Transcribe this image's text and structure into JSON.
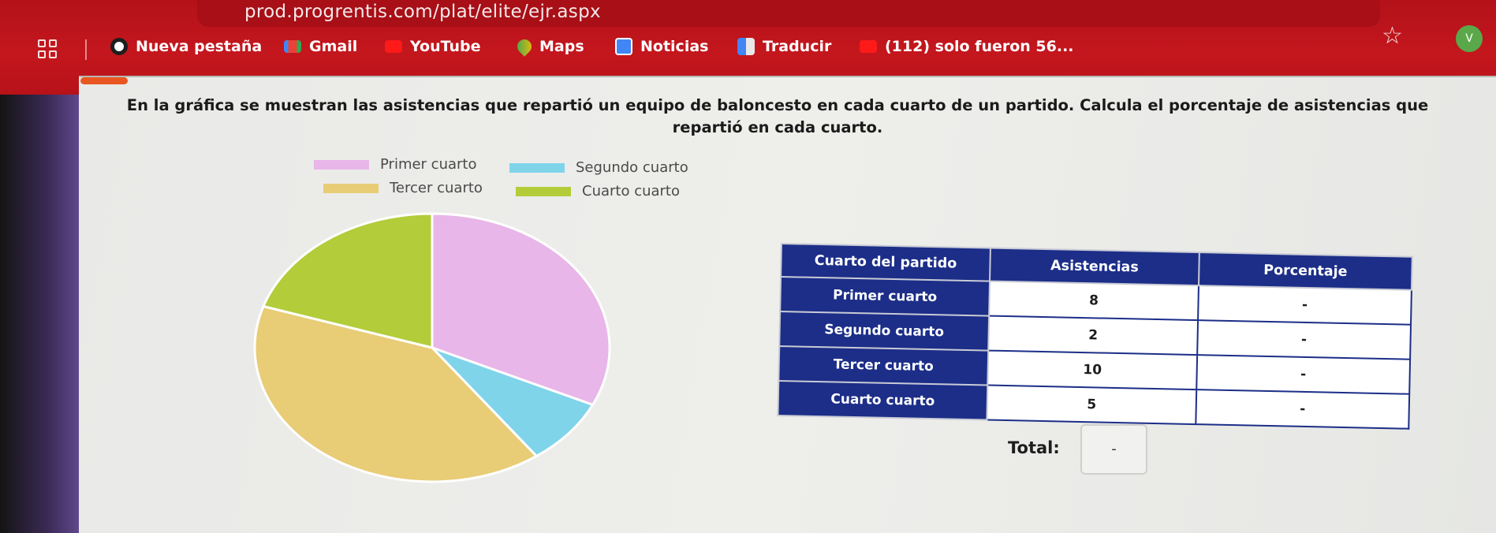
{
  "browser": {
    "url": "prod.progrentis.com/plat/elite/ejr.aspx",
    "profile_initial": "V",
    "bookmarks": [
      {
        "label": "Nueva pestaña",
        "icon": "chrome-icon",
        "color": "#ffffff"
      },
      {
        "label": "Gmail",
        "icon": "gmail-icon",
        "color": "#ea4335"
      },
      {
        "label": "YouTube",
        "icon": "youtube-icon",
        "color": "#ff0000"
      },
      {
        "label": "Maps",
        "icon": "maps-pin-icon",
        "color": "#34a853"
      },
      {
        "label": "Noticias",
        "icon": "news-icon",
        "color": "#4285f4"
      },
      {
        "label": "Traducir",
        "icon": "translate-icon",
        "color": "#4285f4"
      },
      {
        "label": "(112) solo fueron 56...",
        "icon": "youtube-icon",
        "color": "#ff0000"
      }
    ]
  },
  "exercise": {
    "question": "En la gráfica se muestran las asistencias que repartió un equipo de baloncesto en cada cuarto de un partido. Calcula el porcentaje de asistencias que repartió en cada cuarto.",
    "total_label": "Total:",
    "total_value": "-"
  },
  "chart_data": {
    "type": "pie",
    "legend_placement": "top",
    "series": [
      {
        "name": "Primer cuarto",
        "value": 8,
        "color": "#e8b6e8"
      },
      {
        "name": "Segundo cuarto",
        "value": 2,
        "color": "#7fd4ea"
      },
      {
        "name": "Tercer cuarto",
        "value": 10,
        "color": "#e8cc76"
      },
      {
        "name": "Cuarto cuarto",
        "value": 5,
        "color": "#b3cc3a"
      }
    ]
  },
  "table": {
    "headers": [
      "Cuarto del partido",
      "Asistencias",
      "Porcentaje"
    ],
    "rows": [
      {
        "quarter": "Primer cuarto",
        "assists": "8",
        "percent": "-"
      },
      {
        "quarter": "Segundo cuarto",
        "assists": "2",
        "percent": "-"
      },
      {
        "quarter": "Tercer cuarto",
        "assists": "10",
        "percent": "-"
      },
      {
        "quarter": "Cuarto cuarto",
        "assists": "5",
        "percent": "-"
      }
    ]
  }
}
